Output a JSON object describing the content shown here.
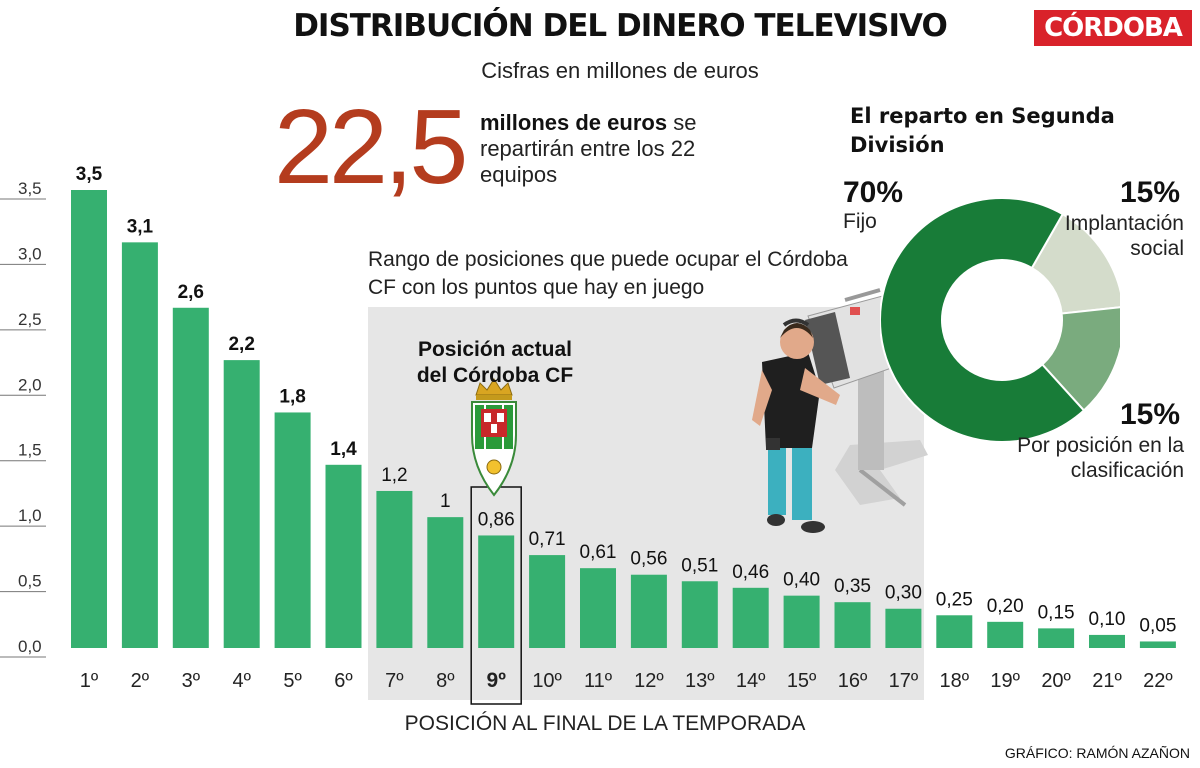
{
  "header": {
    "title": "DISTRIBUCIÓN DEL DINERO TELEVISIVO",
    "subtitle": "Cisfras en millones de euros",
    "brand": "CÓRDOBA"
  },
  "highlight": {
    "big_number": "22,5",
    "caption_bold": "millones de euros",
    "caption_rest": "se repartirán entre los 22 equipos"
  },
  "range_note": "Rango de  posiciones que puede ocupar el Córdoba CF con los puntos que hay en juego",
  "current_position_label": "Posición actual del Córdoba CF",
  "axis_title": "POSICIÓN AL FINAL DE LA TEMPORADA",
  "credit": "GRÁFICO: RAMÓN AZAÑON",
  "colors": {
    "bar": "#36b070",
    "range_box": "#e6e6e6",
    "pie_fijo": "#187c38",
    "pie_implantacion": "#d4dccb",
    "pie_posicion": "#7aab7e",
    "big_number": "#b43c1e",
    "brand": "#d9222a"
  },
  "pie": {
    "title": "El reparto en Segunda División",
    "slices": [
      {
        "pct": "70%",
        "label": "Fijo",
        "value": 70
      },
      {
        "pct": "15%",
        "label": "Implantación social",
        "value": 15
      },
      {
        "pct": "15%",
        "label": "Por posición en la clasificación",
        "value": 15
      }
    ]
  },
  "chart_data": [
    {
      "type": "bar",
      "categories": [
        "1º",
        "2º",
        "3º",
        "4º",
        "5º",
        "6º",
        "7º",
        "8º",
        "9º",
        "10º",
        "11º",
        "12º",
        "13º",
        "14º",
        "15º",
        "16º",
        "17º",
        "18º",
        "19º",
        "20º",
        "21º",
        "22º"
      ],
      "values": [
        3.5,
        3.1,
        2.6,
        2.2,
        1.8,
        1.4,
        1.2,
        1,
        0.86,
        0.71,
        0.61,
        0.56,
        0.51,
        0.46,
        0.4,
        0.35,
        0.3,
        0.25,
        0.2,
        0.15,
        0.1,
        0.05
      ],
      "value_labels": [
        "3,5",
        "3,1",
        "2,6",
        "2,2",
        "1,8",
        "1,4",
        "1,2",
        "1",
        "0,86",
        "0,71",
        "0,61",
        "0,56",
        "0,51",
        "0,46",
        "0,40",
        "0,35",
        "0,30",
        "0,25",
        "0,20",
        "0,15",
        "0,10",
        "0,05"
      ],
      "bold_labels": [
        0,
        1,
        2,
        3,
        4,
        5
      ],
      "highlight_category": "9º",
      "highlight_range": [
        "7º",
        "17º"
      ],
      "title": "DISTRIBUCIÓN DEL DINERO TELEVISIVO",
      "xlabel": "POSICIÓN AL FINAL DE LA TEMPORADA",
      "ylabel": "",
      "ylim": [
        0,
        3.5
      ],
      "yticks": [
        "0,0",
        "0,5",
        "1,0",
        "1,5",
        "2,0",
        "2,5",
        "3,0",
        "3,5"
      ],
      "grid": false
    },
    {
      "type": "pie",
      "title": "El reparto en Segunda División",
      "categories": [
        "Fijo",
        "Implantación social",
        "Por posición en la clasificación"
      ],
      "values": [
        70,
        15,
        15
      ]
    }
  ]
}
